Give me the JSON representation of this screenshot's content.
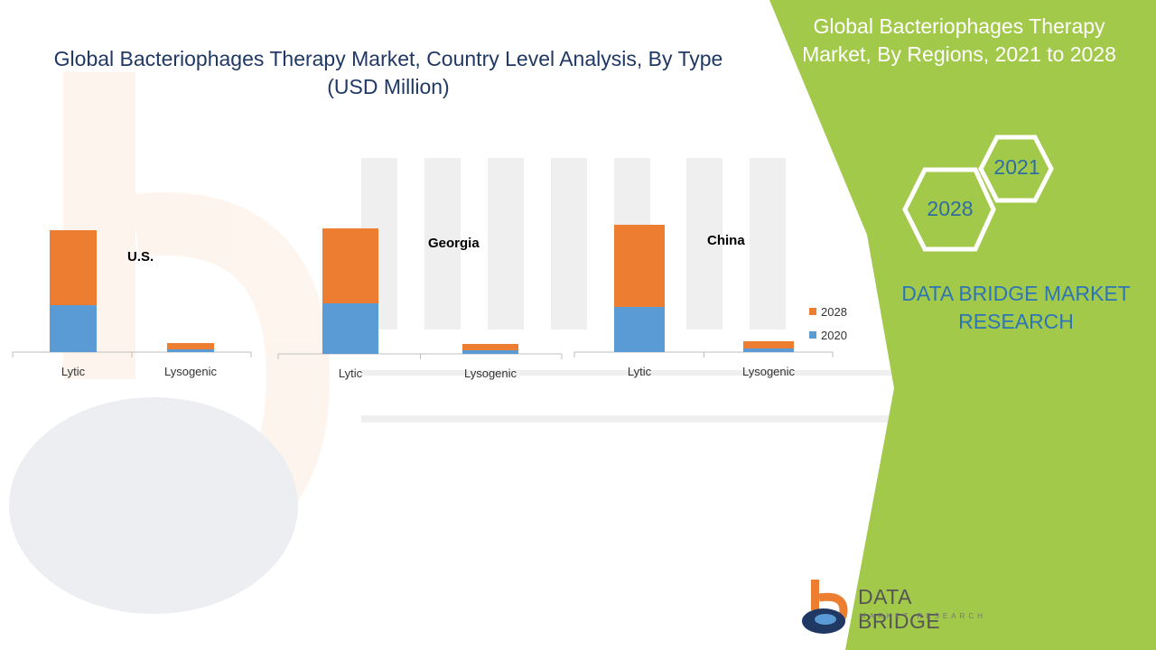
{
  "title": "Global Bacteriophages Therapy Market, Country Level Analysis, By Type",
  "subtitle": "(USD Million)",
  "side_panel": {
    "title": "Global Bacteriophages Therapy Market, By Regions, 2021 to 2028",
    "hex_labels": [
      "2021",
      "2028"
    ],
    "brand_line1": "DATA BRIDGE MARKET",
    "brand_line2": "RESEARCH"
  },
  "logo": {
    "name": "DATA BRIDGE",
    "sub": "MARKET RESEARCH"
  },
  "colors": {
    "series_2020": "#5b9bd5",
    "series_2028": "#ed7d31",
    "green_panel": "#a3c94a",
    "title_blue": "#1f3864"
  },
  "legend": [
    {
      "name": "2028",
      "color": "#ed7d31"
    },
    {
      "name": "2020",
      "color": "#5b9bd5"
    }
  ],
  "chart_data": [
    {
      "type": "bar",
      "stacked": true,
      "title": "U.S.",
      "categories": [
        "Lytic",
        "Lysogenic"
      ],
      "series": [
        {
          "name": "2020",
          "values": [
            52,
            3
          ]
        },
        {
          "name": "2028",
          "values": [
            83,
            7
          ]
        }
      ],
      "ylim": [
        0,
        140
      ]
    },
    {
      "type": "bar",
      "stacked": true,
      "title": "Georgia",
      "categories": [
        "Lytic",
        "Lysogenic"
      ],
      "series": [
        {
          "name": "2020",
          "values": [
            56,
            4
          ]
        },
        {
          "name": "2028",
          "values": [
            83,
            7
          ]
        }
      ],
      "ylim": [
        0,
        140
      ]
    },
    {
      "type": "bar",
      "stacked": true,
      "title": "China",
      "categories": [
        "Lytic",
        "Lysogenic"
      ],
      "series": [
        {
          "name": "2020",
          "values": [
            50,
            4
          ]
        },
        {
          "name": "2028",
          "values": [
            91,
            8
          ]
        }
      ],
      "ylim": [
        0,
        140
      ]
    }
  ]
}
